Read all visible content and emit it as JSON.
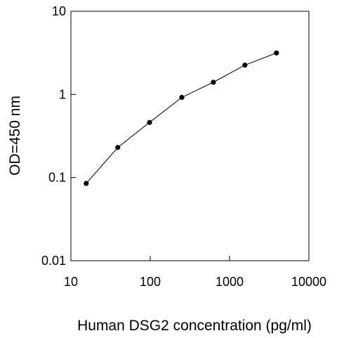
{
  "chart_data": {
    "type": "scatter",
    "title": "",
    "xlabel": "Human DSG2 concentration (pg/ml)",
    "ylabel": "OD=450 nm",
    "x_scale": "log",
    "y_scale": "log",
    "xlim": [
      10,
      10000
    ],
    "ylim": [
      0.01,
      10
    ],
    "x_ticks": [
      10,
      100,
      1000,
      10000
    ],
    "x_tick_labels": [
      "10",
      "100",
      "1000",
      "10000"
    ],
    "y_ticks": [
      0.01,
      0.1,
      1,
      10
    ],
    "y_tick_labels": [
      "0.01",
      "0.1",
      "1",
      "10"
    ],
    "grid": false,
    "legend": "none",
    "connect_points": true,
    "colors": {
      "line": "#000000",
      "marker": "#000000",
      "axes": "#000000"
    },
    "series": [
      {
        "x": [
          15.6,
          39,
          98,
          250,
          625,
          1560,
          3900
        ],
        "y": [
          0.085,
          0.23,
          0.46,
          0.92,
          1.4,
          2.25,
          3.15
        ]
      }
    ]
  }
}
